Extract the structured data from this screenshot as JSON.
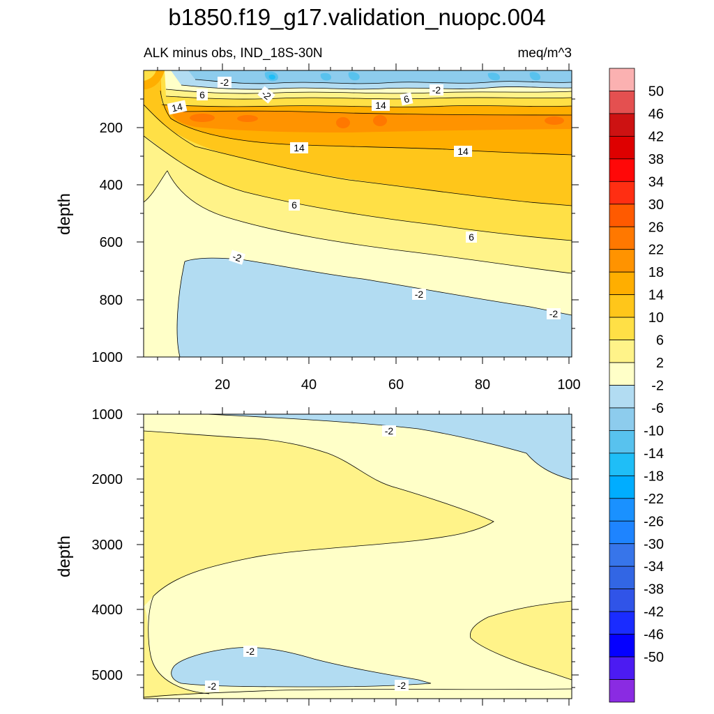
{
  "chart_data": {
    "type": "contour",
    "title": "b1850.f19_g17.validation_nuopc.004",
    "left_subtitle": "ALK minus obs, IND_18S-30N",
    "right_subtitle": "meq/m^3",
    "colors": {
      "c50": "#fbb1b1",
      "c46": "#e45050",
      "c42": "#cd1212",
      "c38": "#de0000",
      "c34": "#ff0808",
      "c30": "#ff2e12",
      "c26": "#ff5a00",
      "c22": "#ff7800",
      "c18": "#ff9300",
      "c14": "#ffae00",
      "c10": "#ffc61a",
      "c6": "#ffe046",
      "c2": "#fff389",
      "cm2": "#ffffc8",
      "cm6": "#b2dcf2",
      "cm10": "#8dcced",
      "cm14": "#58c2ee",
      "cm18": "#1fbef7",
      "cm22": "#00adff",
      "cm26": "#1a91ff",
      "cm30": "#1e84ff",
      "cm34": "#3775ea",
      "cm38": "#3266e4",
      "cm42": "#3054e8",
      "cm46": "#1a2cff",
      "cm50": "#0500ff",
      "cm54": "#4c1bf2",
      "cm58": "#8a2be2"
    },
    "colorbar_labels": [
      "50",
      "46",
      "42",
      "38",
      "34",
      "30",
      "26",
      "22",
      "18",
      "14",
      "10",
      "6",
      "2",
      "-2",
      "-6",
      "-10",
      "-14",
      "-18",
      "-22",
      "-26",
      "-30",
      "-34",
      "-38",
      "-42",
      "-46",
      "-50"
    ],
    "panels": [
      {
        "ylabel": "depth",
        "ylim": [
          1000,
          0
        ],
        "xlim": [
          0,
          100
        ],
        "yticks": [
          "200",
          "400",
          "600",
          "800",
          "1000"
        ],
        "xticks": [
          "20",
          "40",
          "60",
          "80",
          "100"
        ],
        "contour_labels": [
          "-2",
          "6",
          "-2",
          "14",
          "14",
          "6",
          "-2",
          "14",
          "14",
          "6",
          "6",
          "-2",
          "-2",
          "-2"
        ]
      },
      {
        "ylabel": "depth",
        "ylim": [
          5350,
          1000
        ],
        "xlim": [
          0,
          100
        ],
        "yticks": [
          "1000",
          "2000",
          "3000",
          "4000",
          "5000"
        ],
        "contour_labels": [
          "-2",
          "-2",
          "-2",
          "-2"
        ]
      }
    ]
  }
}
